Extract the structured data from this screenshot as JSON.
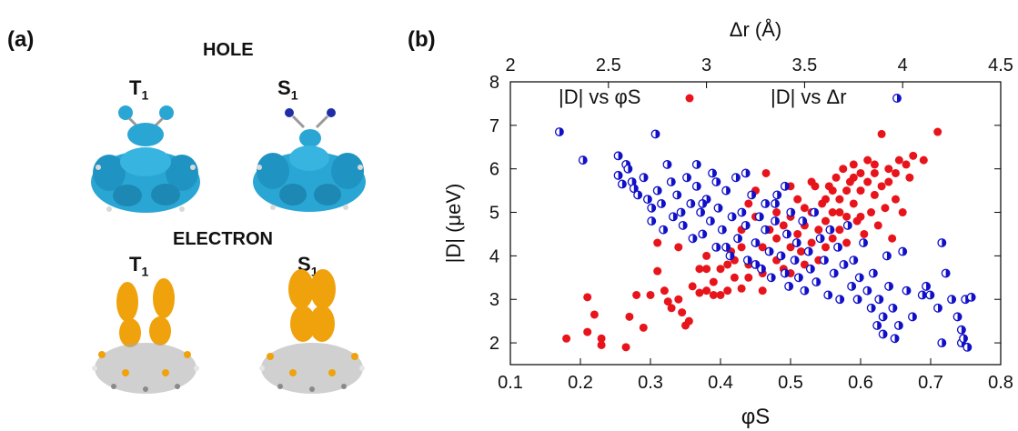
{
  "panel_a": {
    "label": "(a)",
    "hole_title": "HOLE",
    "electron_title": "ELECTRON",
    "states": {
      "t1": {
        "letter": "T",
        "sub": "1"
      },
      "s1": {
        "letter": "S",
        "sub": "1"
      }
    },
    "colors": {
      "hole": "#2aa6d4",
      "electron": "#f0a20c",
      "atom_c": "#9b9b9b",
      "atom_h": "#e6e6e6",
      "atom_n": "#1d2ea8"
    }
  },
  "panel_b": {
    "label": "(b)"
  },
  "chart_data": {
    "type": "scatter",
    "title": "",
    "xlabel": "φS",
    "x2label": "Δr (Å)",
    "ylabel": "|D| (μeV)",
    "xlim": [
      0.1,
      0.8
    ],
    "x2lim": [
      2.0,
      4.5
    ],
    "ylim": [
      1.5,
      8.0
    ],
    "x_ticks": [
      "0.1",
      "0.2",
      "0.3",
      "0.4",
      "0.5",
      "0.6",
      "0.7",
      "0.8"
    ],
    "x2_ticks": [
      "2",
      "2.5",
      "3",
      "3.5",
      "4",
      "4.5"
    ],
    "y_ticks": [
      "2",
      "3",
      "4",
      "5",
      "6",
      "7",
      "8"
    ],
    "legend_position": "top",
    "series": [
      {
        "name": "|D| vs φS",
        "axis": "bottom",
        "color": "#e8141b",
        "marker": "filled-circle",
        "points": [
          [
            0.18,
            2.1
          ],
          [
            0.21,
            3.05
          ],
          [
            0.21,
            2.25
          ],
          [
            0.22,
            2.65
          ],
          [
            0.23,
            2.1
          ],
          [
            0.23,
            1.95
          ],
          [
            0.265,
            1.9
          ],
          [
            0.28,
            3.1
          ],
          [
            0.27,
            2.6
          ],
          [
            0.29,
            2.35
          ],
          [
            0.3,
            3.1
          ],
          [
            0.31,
            4.3
          ],
          [
            0.31,
            3.65
          ],
          [
            0.32,
            3.2
          ],
          [
            0.325,
            2.95
          ],
          [
            0.33,
            2.8
          ],
          [
            0.34,
            3.0
          ],
          [
            0.345,
            2.7
          ],
          [
            0.35,
            2.4
          ],
          [
            0.355,
            2.5
          ],
          [
            0.34,
            4.2
          ],
          [
            0.37,
            3.15
          ],
          [
            0.38,
            3.2
          ],
          [
            0.38,
            3.7
          ],
          [
            0.39,
            3.1
          ],
          [
            0.4,
            3.7
          ],
          [
            0.4,
            3.1
          ],
          [
            0.41,
            3.2
          ],
          [
            0.415,
            4.1
          ],
          [
            0.42,
            3.5
          ],
          [
            0.42,
            3.9
          ],
          [
            0.43,
            4.6
          ],
          [
            0.43,
            3.25
          ],
          [
            0.44,
            3.8
          ],
          [
            0.44,
            3.5
          ],
          [
            0.45,
            4.9
          ],
          [
            0.45,
            5.5
          ],
          [
            0.46,
            3.6
          ],
          [
            0.46,
            3.2
          ],
          [
            0.465,
            5.9
          ],
          [
            0.47,
            4.1
          ],
          [
            0.48,
            3.9
          ],
          [
            0.48,
            4.4
          ],
          [
            0.49,
            3.7
          ],
          [
            0.49,
            4.7
          ],
          [
            0.5,
            3.6
          ],
          [
            0.5,
            4.2
          ],
          [
            0.5,
            4.9
          ],
          [
            0.51,
            4.5
          ],
          [
            0.51,
            5.3
          ],
          [
            0.515,
            4.1
          ],
          [
            0.52,
            4.7
          ],
          [
            0.52,
            3.8
          ],
          [
            0.53,
            5.0
          ],
          [
            0.53,
            4.3
          ],
          [
            0.535,
            5.6
          ],
          [
            0.54,
            4.6
          ],
          [
            0.54,
            3.9
          ],
          [
            0.545,
            5.2
          ],
          [
            0.55,
            4.8
          ],
          [
            0.55,
            4.2
          ],
          [
            0.555,
            5.6
          ],
          [
            0.56,
            5.0
          ],
          [
            0.56,
            4.4
          ],
          [
            0.565,
            5.8
          ],
          [
            0.57,
            5.3
          ],
          [
            0.57,
            4.6
          ],
          [
            0.575,
            6.0
          ],
          [
            0.58,
            5.5
          ],
          [
            0.58,
            4.9
          ],
          [
            0.585,
            5.7
          ],
          [
            0.59,
            5.2
          ],
          [
            0.59,
            6.1
          ],
          [
            0.595,
            4.8
          ],
          [
            0.6,
            5.5
          ],
          [
            0.6,
            5.9
          ],
          [
            0.605,
            4.5
          ],
          [
            0.61,
            5.7
          ],
          [
            0.61,
            6.2
          ],
          [
            0.615,
            5.0
          ],
          [
            0.62,
            5.4
          ],
          [
            0.62,
            5.9
          ],
          [
            0.625,
            4.7
          ],
          [
            0.63,
            5.6
          ],
          [
            0.63,
            6.8
          ],
          [
            0.635,
            5.1
          ],
          [
            0.64,
            6.0
          ],
          [
            0.64,
            5.7
          ],
          [
            0.645,
            4.4
          ],
          [
            0.65,
            5.9
          ],
          [
            0.65,
            5.3
          ],
          [
            0.655,
            6.2
          ],
          [
            0.66,
            5.0
          ],
          [
            0.665,
            6.1
          ],
          [
            0.67,
            5.8
          ],
          [
            0.675,
            6.3
          ],
          [
            0.69,
            6.2
          ],
          [
            0.71,
            6.85
          ],
          [
            0.44,
            5.2
          ],
          [
            0.47,
            4.6
          ],
          [
            0.53,
            5.7
          ],
          [
            0.56,
            5.5
          ],
          [
            0.58,
            4.3
          ],
          [
            0.6,
            4.9
          ],
          [
            0.5,
            5.6
          ],
          [
            0.52,
            5.1
          ],
          [
            0.48,
            5.0
          ],
          [
            0.46,
            4.2
          ],
          [
            0.43,
            4.2
          ],
          [
            0.41,
            3.8
          ],
          [
            0.39,
            3.4
          ],
          [
            0.37,
            3.7
          ],
          [
            0.36,
            3.3
          ],
          [
            0.38,
            4.0
          ],
          [
            0.55,
            5.3
          ],
          [
            0.57,
            5.0
          ],
          [
            0.59,
            5.8
          ],
          [
            0.62,
            6.1
          ]
        ]
      },
      {
        "name": "|D| vs Δr",
        "axis": "top",
        "color": "#1010c8",
        "marker": "half-filled-circle",
        "points": [
          [
            2.25,
            6.85
          ],
          [
            2.37,
            6.2
          ],
          [
            2.55,
            6.3
          ],
          [
            2.55,
            5.85
          ],
          [
            2.57,
            5.65
          ],
          [
            2.59,
            6.1
          ],
          [
            2.6,
            6.0
          ],
          [
            2.62,
            5.7
          ],
          [
            2.63,
            5.55
          ],
          [
            2.65,
            5.4
          ],
          [
            2.68,
            5.8
          ],
          [
            2.7,
            5.3
          ],
          [
            2.72,
            5.1
          ],
          [
            2.72,
            4.8
          ],
          [
            2.74,
            6.8
          ],
          [
            2.75,
            5.5
          ],
          [
            2.77,
            5.2
          ],
          [
            2.78,
            4.6
          ],
          [
            2.8,
            6.1
          ],
          [
            2.82,
            5.7
          ],
          [
            2.83,
            4.9
          ],
          [
            2.85,
            5.4
          ],
          [
            2.87,
            5.0
          ],
          [
            2.88,
            4.7
          ],
          [
            2.9,
            5.8
          ],
          [
            2.92,
            5.2
          ],
          [
            2.93,
            4.4
          ],
          [
            2.95,
            6.1
          ],
          [
            2.95,
            5.6
          ],
          [
            2.97,
            5.0
          ],
          [
            2.98,
            4.5
          ],
          [
            3.0,
            5.3
          ],
          [
            3.02,
            4.8
          ],
          [
            3.03,
            5.9
          ],
          [
            3.05,
            4.2
          ],
          [
            3.06,
            5.1
          ],
          [
            3.08,
            4.6
          ],
          [
            3.1,
            5.5
          ],
          [
            3.12,
            4.0
          ],
          [
            3.13,
            4.9
          ],
          [
            3.15,
            5.8
          ],
          [
            3.16,
            4.4
          ],
          [
            3.18,
            5.0
          ],
          [
            3.2,
            4.7
          ],
          [
            3.21,
            3.9
          ],
          [
            3.23,
            5.4
          ],
          [
            3.25,
            4.3
          ],
          [
            3.27,
            4.9
          ],
          [
            3.28,
            3.7
          ],
          [
            3.3,
            4.6
          ],
          [
            3.3,
            5.2
          ],
          [
            3.32,
            4.1
          ],
          [
            3.33,
            3.5
          ],
          [
            3.35,
            4.8
          ],
          [
            3.36,
            5.4
          ],
          [
            3.38,
            4.0
          ],
          [
            3.4,
            3.6
          ],
          [
            3.41,
            4.5
          ],
          [
            3.42,
            3.3
          ],
          [
            3.43,
            5.0
          ],
          [
            3.45,
            3.9
          ],
          [
            3.46,
            4.3
          ],
          [
            3.47,
            3.5
          ],
          [
            3.49,
            4.8
          ],
          [
            3.5,
            3.2
          ],
          [
            3.52,
            4.1
          ],
          [
            3.53,
            3.7
          ],
          [
            3.55,
            5.0
          ],
          [
            3.56,
            3.4
          ],
          [
            3.58,
            4.4
          ],
          [
            3.6,
            3.9
          ],
          [
            3.62,
            3.1
          ],
          [
            3.63,
            4.6
          ],
          [
            3.65,
            3.6
          ],
          [
            3.67,
            4.2
          ],
          [
            3.68,
            3.0
          ],
          [
            3.7,
            3.8
          ],
          [
            3.72,
            4.7
          ],
          [
            3.74,
            3.3
          ],
          [
            3.75,
            3.9
          ],
          [
            3.77,
            3.0
          ],
          [
            3.78,
            3.5
          ],
          [
            3.8,
            4.3
          ],
          [
            3.82,
            3.2
          ],
          [
            3.84,
            2.8
          ],
          [
            3.85,
            3.6
          ],
          [
            3.87,
            2.4
          ],
          [
            3.88,
            3.0
          ],
          [
            3.9,
            2.6
          ],
          [
            3.9,
            2.2
          ],
          [
            3.92,
            4.0
          ],
          [
            3.93,
            3.3
          ],
          [
            3.95,
            2.8
          ],
          [
            3.96,
            2.1
          ],
          [
            3.98,
            2.4
          ],
          [
            4.0,
            4.1
          ],
          [
            4.02,
            3.2
          ],
          [
            4.05,
            2.6
          ],
          [
            4.1,
            3.1
          ],
          [
            4.12,
            3.3
          ],
          [
            4.14,
            3.1
          ],
          [
            4.18,
            2.8
          ],
          [
            4.2,
            4.3
          ],
          [
            4.22,
            3.6
          ],
          [
            4.25,
            3.0
          ],
          [
            4.28,
            2.6
          ],
          [
            4.3,
            2.0
          ],
          [
            4.31,
            2.1
          ],
          [
            4.32,
            3.0
          ],
          [
            4.33,
            1.9
          ],
          [
            4.35,
            3.05
          ],
          [
            4.3,
            2.3
          ],
          [
            4.2,
            2.0
          ],
          [
            3.4,
            5.6
          ],
          [
            3.35,
            5.2
          ],
          [
            3.25,
            3.8
          ],
          [
            3.2,
            5.9
          ],
          [
            3.1,
            4.2
          ],
          [
            3.05,
            5.7
          ],
          [
            2.98,
            5.2
          ]
        ]
      }
    ]
  }
}
